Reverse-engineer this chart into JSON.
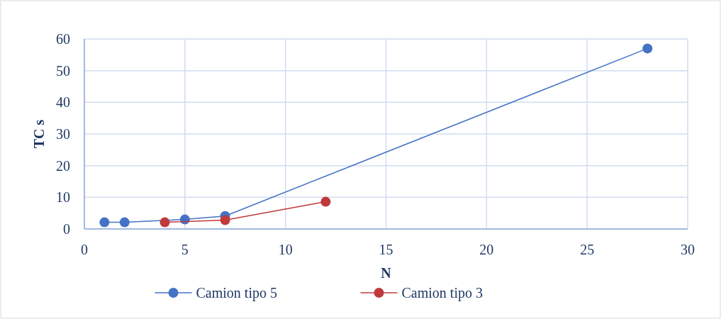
{
  "chart_data": {
    "type": "line",
    "xlabel": "N",
    "ylabel": "TC s",
    "xlim": [
      0,
      30
    ],
    "xticks": [
      0,
      5,
      10,
      15,
      20,
      25,
      30
    ],
    "ylim": [
      0,
      60
    ],
    "yticks": [
      0,
      10,
      20,
      30,
      40,
      50,
      60
    ],
    "grid": true,
    "legend": "bottom",
    "marker": "circle",
    "series": [
      {
        "name": "Camion tipo 5",
        "color": "#4472c4",
        "x": [
          1,
          2,
          5,
          7,
          28
        ],
        "values": [
          2.1,
          2.1,
          3.0,
          4.1,
          57
        ]
      },
      {
        "name": "Camion tipo 3",
        "color": "#c0393b",
        "x": [
          4,
          7,
          12
        ],
        "values": [
          2.1,
          2.8,
          8.6
        ]
      }
    ]
  }
}
